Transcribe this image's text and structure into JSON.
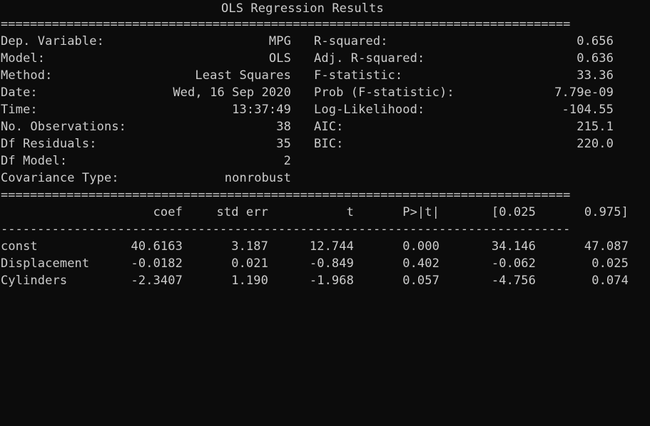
{
  "title": "OLS Regression Results",
  "rule_double": "==============================================================================",
  "rule_single": "------------------------------------------------------------------------------",
  "left_stats": [
    {
      "label": "Dep. Variable:",
      "value": "MPG"
    },
    {
      "label": "Model:",
      "value": "OLS"
    },
    {
      "label": "Method:",
      "value": "Least Squares"
    },
    {
      "label": "Date:",
      "value": "Wed, 16 Sep 2020"
    },
    {
      "label": "Time:",
      "value": "13:37:49"
    },
    {
      "label": "No. Observations:",
      "value": "38"
    },
    {
      "label": "Df Residuals:",
      "value": "35"
    },
    {
      "label": "Df Model:",
      "value": "2"
    },
    {
      "label": "Covariance Type:",
      "value": "nonrobust"
    }
  ],
  "right_stats": [
    {
      "label": "R-squared:",
      "value": "0.656"
    },
    {
      "label": "Adj. R-squared:",
      "value": "0.636"
    },
    {
      "label": "F-statistic:",
      "value": "33.36"
    },
    {
      "label": "Prob (F-statistic):",
      "value": "7.79e-09"
    },
    {
      "label": "Log-Likelihood:",
      "value": "-104.55"
    },
    {
      "label": "AIC:",
      "value": "215.1"
    },
    {
      "label": "BIC:",
      "value": "220.0"
    }
  ],
  "coef_table": {
    "headers": [
      "coef",
      "std err",
      "t",
      "P>|t|",
      "[0.025",
      "0.975]"
    ],
    "rows": [
      {
        "name": "const",
        "values": [
          "40.6163",
          "3.187",
          "12.744",
          "0.000",
          "34.146",
          "47.087"
        ]
      },
      {
        "name": "Displacement",
        "values": [
          "-0.0182",
          "0.021",
          "-0.849",
          "0.402",
          "-0.062",
          "0.025"
        ]
      },
      {
        "name": "Cylinders",
        "values": [
          "-2.3407",
          "1.190",
          "-1.968",
          "0.057",
          "-4.756",
          "0.074"
        ]
      }
    ]
  }
}
